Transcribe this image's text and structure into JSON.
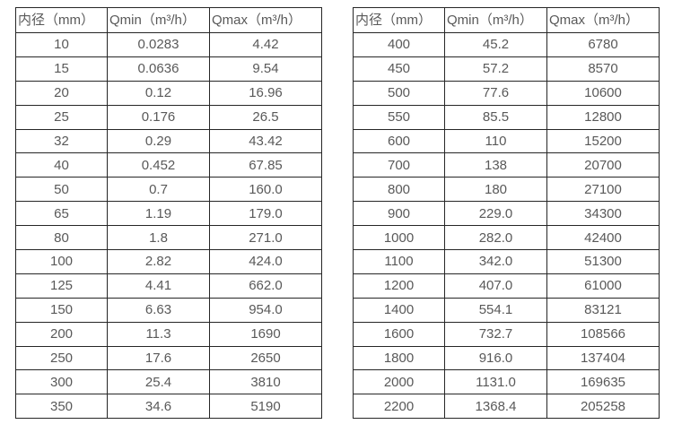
{
  "colors": {
    "background": "#ffffff",
    "table_border": "#262626",
    "text": "#595959"
  },
  "table_left": {
    "headers": [
      "内径（mm）",
      "Qmin（m³/h）",
      "Qmax（m³/h）"
    ],
    "rows": [
      [
        "10",
        "0.0283",
        "4.42"
      ],
      [
        "15",
        "0.0636",
        "9.54"
      ],
      [
        "20",
        "0.12",
        "16.96"
      ],
      [
        "25",
        "0.176",
        "26.5"
      ],
      [
        "32",
        "0.29",
        "43.42"
      ],
      [
        "40",
        "0.452",
        "67.85"
      ],
      [
        "50",
        "0.7",
        "160.0"
      ],
      [
        "65",
        "1.19",
        "179.0"
      ],
      [
        "80",
        "1.8",
        "271.0"
      ],
      [
        "100",
        "2.82",
        "424.0"
      ],
      [
        "125",
        "4.41",
        "662.0"
      ],
      [
        "150",
        "6.63",
        "954.0"
      ],
      [
        "200",
        "11.3",
        "1690"
      ],
      [
        "250",
        "17.6",
        "2650"
      ],
      [
        "300",
        "25.4",
        "3810"
      ],
      [
        "350",
        "34.6",
        "5190"
      ]
    ]
  },
  "table_right": {
    "headers": [
      "内径（mm）",
      "Qmin（m³/h）",
      "Qmax（m³/h）"
    ],
    "rows": [
      [
        "400",
        "45.2",
        "6780"
      ],
      [
        "450",
        "57.2",
        "8570"
      ],
      [
        "500",
        "77.6",
        "10600"
      ],
      [
        "550",
        "85.5",
        "12800"
      ],
      [
        "600",
        "110",
        "15200"
      ],
      [
        "700",
        "138",
        "20700"
      ],
      [
        "800",
        "180",
        "27100"
      ],
      [
        "900",
        "229.0",
        "34300"
      ],
      [
        "1000",
        "282.0",
        "42400"
      ],
      [
        "1100",
        "342.0",
        "51300"
      ],
      [
        "1200",
        "407.0",
        "61000"
      ],
      [
        "1400",
        "554.1",
        "83121"
      ],
      [
        "1600",
        "732.7",
        "108566"
      ],
      [
        "1800",
        "916.0",
        "137404"
      ],
      [
        "2000",
        "1131.0",
        "169635"
      ],
      [
        "2200",
        "1368.4",
        "205258"
      ]
    ]
  }
}
